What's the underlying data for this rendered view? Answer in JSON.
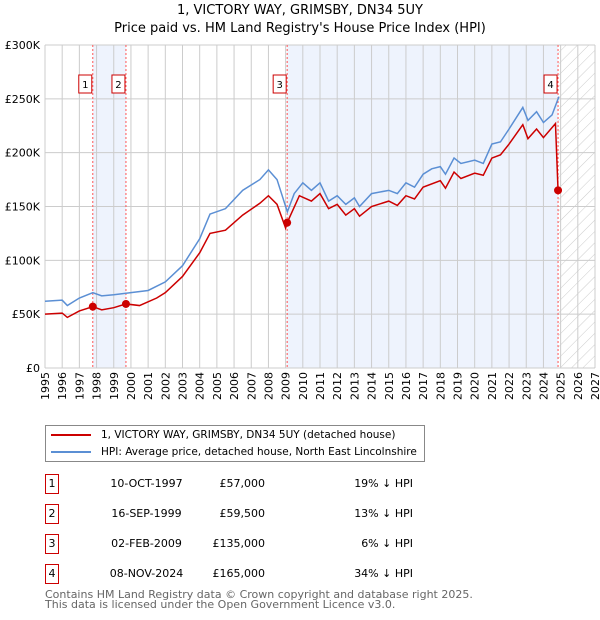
{
  "title": "1, VICTORY WAY, GRIMSBY, DN34 5UY",
  "subtitle": "Price paid vs. HM Land Registry's House Price Index (HPI)",
  "chart_data": {
    "type": "line",
    "xlim": [
      1995,
      2027
    ],
    "ylim": [
      0,
      300000
    ],
    "xticks": [
      "1995",
      "1996",
      "1997",
      "1998",
      "1999",
      "2000",
      "2001",
      "2002",
      "2003",
      "2004",
      "2005",
      "2006",
      "2007",
      "2008",
      "2009",
      "2010",
      "2011",
      "2012",
      "2013",
      "2014",
      "2015",
      "2016",
      "2017",
      "2018",
      "2019",
      "2020",
      "2021",
      "2022",
      "2023",
      "2024",
      "2025",
      "2026",
      "2027"
    ],
    "yticks": [
      {
        "v": 0,
        "label": "£0"
      },
      {
        "v": 50000,
        "label": "£50K"
      },
      {
        "v": 100000,
        "label": "£100K"
      },
      {
        "v": 150000,
        "label": "£150K"
      },
      {
        "v": 200000,
        "label": "£200K"
      },
      {
        "v": 250000,
        "label": "£250K"
      },
      {
        "v": 300000,
        "label": "£300K"
      }
    ],
    "series": [
      {
        "name": "1, VICTORY WAY, GRIMSBY, DN34 5UY (detached house)",
        "color": "#cc0000",
        "x": [
          1995,
          1996,
          1996.3,
          1997,
          1997.78,
          1998.3,
          1999,
          1999.71,
          2000.5,
          2001.5,
          2002,
          2003,
          2004,
          2004.6,
          2005.5,
          2006.5,
          2007.5,
          2008,
          2008.5,
          2009,
          2009.09,
          2009.8,
          2010.5,
          2011,
          2011.5,
          2012,
          2012.5,
          2013,
          2013.3,
          2014,
          2015,
          2015.5,
          2016,
          2016.5,
          2017,
          2018,
          2018.3,
          2018.8,
          2019.2,
          2020,
          2020.5,
          2021,
          2021.5,
          2022,
          2022.8,
          2023.1,
          2023.6,
          2024,
          2024.7,
          2024.85
        ],
        "y": [
          50000,
          51000,
          47000,
          53000,
          57000,
          54000,
          56000,
          59500,
          58000,
          65000,
          70000,
          85000,
          107000,
          125000,
          128000,
          142000,
          153000,
          160000,
          152000,
          130000,
          135000,
          160000,
          155000,
          162000,
          148000,
          152000,
          142000,
          148000,
          141000,
          150000,
          155000,
          151000,
          160000,
          157000,
          168000,
          174000,
          167000,
          182000,
          176000,
          181000,
          179000,
          195000,
          198000,
          208000,
          226000,
          213000,
          222000,
          214000,
          227000,
          165000
        ]
      },
      {
        "name": "HPI: Average price, detached house, North East Lincolnshire",
        "color": "#5b8fd4",
        "x": [
          1995,
          1996,
          1996.3,
          1997,
          1997.78,
          1998.3,
          1999,
          2000,
          2001,
          2002,
          2003,
          2004,
          2004.6,
          2005.5,
          2006.5,
          2007.5,
          2008,
          2008.5,
          2009.1,
          2009.5,
          2010,
          2010.5,
          2011,
          2011.5,
          2012,
          2012.5,
          2013,
          2013.3,
          2014,
          2015,
          2015.5,
          2016,
          2016.5,
          2017,
          2017.5,
          2018,
          2018.3,
          2018.8,
          2019.2,
          2020,
          2020.5,
          2021,
          2021.5,
          2022,
          2022.8,
          2023.1,
          2023.6,
          2024,
          2024.5,
          2024.9
        ],
        "y": [
          62000,
          63000,
          58000,
          65000,
          70000,
          67000,
          68000,
          70000,
          72000,
          80000,
          95000,
          120000,
          143000,
          148000,
          165000,
          175000,
          184000,
          175000,
          145000,
          162000,
          172000,
          165000,
          172000,
          155000,
          160000,
          152000,
          158000,
          150000,
          162000,
          165000,
          162000,
          172000,
          168000,
          180000,
          185000,
          187000,
          180000,
          195000,
          190000,
          193000,
          190000,
          208000,
          210000,
          222000,
          242000,
          230000,
          238000,
          228000,
          235000,
          252000
        ]
      }
    ],
    "sales": [
      {
        "n": "1",
        "x": 1997.78,
        "y": 57000,
        "date": "10-OCT-1997",
        "price": "£57,000",
        "hpi": "19% ↓ HPI"
      },
      {
        "n": "2",
        "x": 1999.71,
        "y": 59500,
        "date": "16-SEP-1999",
        "price": "£59,500",
        "hpi": "13% ↓ HPI"
      },
      {
        "n": "3",
        "x": 2009.09,
        "y": 135000,
        "date": "02-FEB-2009",
        "price": "£135,000",
        "hpi": "6% ↓ HPI"
      },
      {
        "n": "4",
        "x": 2024.85,
        "y": 165000,
        "date": "08-NOV-2024",
        "price": "£165,000",
        "hpi": "34% ↓ HPI"
      }
    ],
    "shaded": [
      [
        1997.78,
        1999.71
      ],
      [
        2009.09,
        2024.85
      ]
    ],
    "forecast_from": 2024.85
  },
  "footer": [
    "Contains HM Land Registry data © Crown copyright and database right 2025.",
    "This data is licensed under the Open Government Licence v3.0."
  ]
}
